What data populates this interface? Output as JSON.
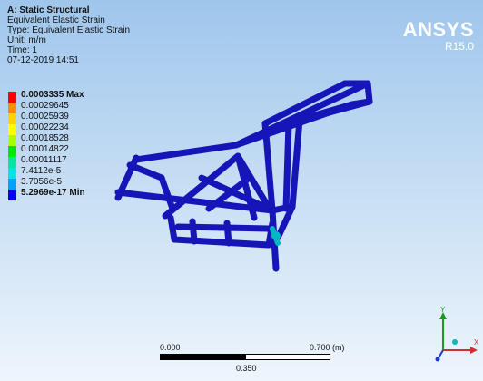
{
  "info": {
    "title": "A: Static Structural",
    "result_name": "Equivalent Elastic Strain",
    "type_line": "Type: Equivalent Elastic Strain",
    "unit_line": "Unit: m/m",
    "time_line": "Time: 1",
    "date_line": "07-12-2019 14:51"
  },
  "legend": {
    "items": [
      {
        "label": "0.0003335 Max",
        "color": "#ff0000"
      },
      {
        "label": "0.00029645",
        "color": "#ff8c00"
      },
      {
        "label": "0.00025939",
        "color": "#ffd200"
      },
      {
        "label": "0.00022234",
        "color": "#ffff00"
      },
      {
        "label": "0.00018528",
        "color": "#a8ff00"
      },
      {
        "label": "0.00014822",
        "color": "#00e600"
      },
      {
        "label": "0.00011117",
        "color": "#00e6a0"
      },
      {
        "label": "7.4112e-5",
        "color": "#00e6e6"
      },
      {
        "label": "3.7056e-5",
        "color": "#00a0ff"
      },
      {
        "label": "5.2969e-17 Min",
        "color": "#0000ff"
      }
    ]
  },
  "brand": {
    "logo": "ANSYS",
    "version": "R15.0"
  },
  "scale": {
    "start": "0.000",
    "end": "0.700 (m)",
    "mid": "0.350"
  },
  "triad": {
    "y_label": "Y",
    "x_label": "X"
  },
  "colors": {
    "frame": "#1515b8",
    "frame_dark": "#0a0a7a",
    "hotspot": "#00b8c0",
    "axis_y": "#1a9a1a",
    "axis_x": "#d03030",
    "axis_z": "#1a3acc"
  }
}
